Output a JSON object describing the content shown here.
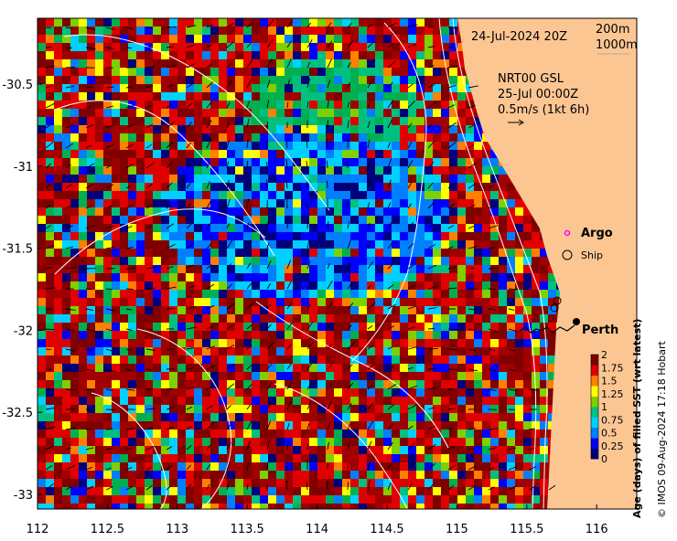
{
  "map": {
    "date_label": "24-Jul-2024 20Z",
    "contour_legend": [
      "200m",
      "1000m"
    ],
    "current_source": [
      "NRT00 GSL",
      "25-Jul 00:00Z",
      "0.5m/s (1kt 6h)"
    ],
    "x_ticks": [
      "112",
      "112.5",
      "113",
      "113.5",
      "114",
      "114.5",
      "115",
      "115.5",
      "116"
    ],
    "y_ticks": [
      "-30.5",
      "-31",
      "-31.5",
      "-32",
      "-32.5",
      "-33"
    ],
    "legend": {
      "argo": "Argo",
      "ship": "Ship"
    },
    "city": "Perth",
    "colorbar": {
      "title": "Age (days) of filled SST (wrt latest)",
      "ticks": [
        "0",
        "0.25",
        "0.5",
        "0.75",
        "1",
        "1.25",
        "1.5",
        "1.75",
        "2"
      ],
      "colors": [
        "#00007f",
        "#0000ff",
        "#0080ff",
        "#00d0ff",
        "#00c080",
        "#7fd000",
        "#ffff00",
        "#ff8000",
        "#e00000",
        "#800000"
      ]
    },
    "credit": "© IMOS 09-Aug-2024 17:18 Hobart",
    "land_color": "#fcc693"
  }
}
